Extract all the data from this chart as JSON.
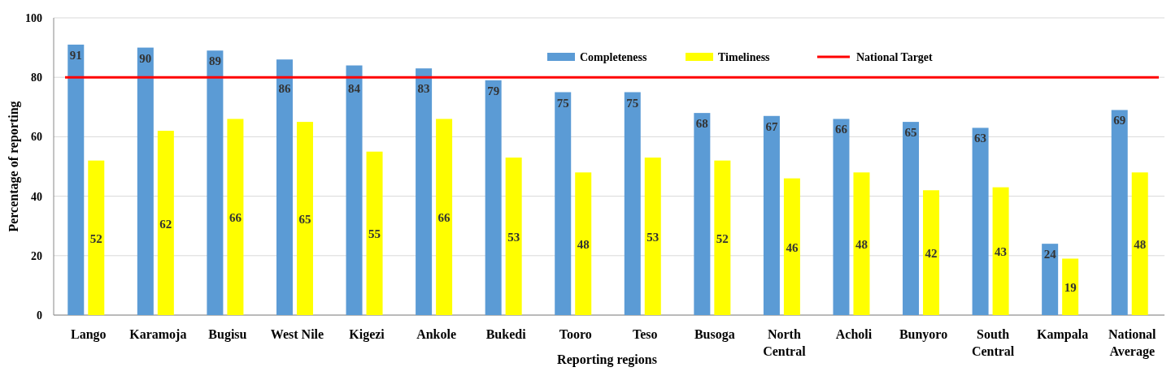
{
  "chart_data": {
    "type": "bar",
    "xlabel": "Reporting regions",
    "ylabel": "Percentage of reporting",
    "categories": [
      "Lango",
      "Karamoja",
      "Bugisu",
      "West Nile",
      "Kigezi",
      "Ankole",
      "Bukedi",
      "Tooro",
      "Teso",
      "Busoga",
      "North Central",
      "Acholi",
      "Bunyoro",
      "South Central",
      "Kampala",
      "National Average"
    ],
    "series": [
      {
        "name": "Completeness",
        "color": "#5b9bd5",
        "values": [
          91,
          90,
          89,
          86,
          84,
          83,
          79,
          75,
          75,
          68,
          67,
          66,
          65,
          63,
          24,
          69
        ]
      },
      {
        "name": "Timeliness",
        "color": "#ffff00",
        "values": [
          52,
          62,
          66,
          65,
          55,
          66,
          53,
          48,
          53,
          52,
          46,
          48,
          42,
          43,
          19,
          48
        ]
      }
    ],
    "ylim": [
      0,
      100
    ],
    "yticks": [
      0,
      20,
      40,
      60,
      80,
      100
    ],
    "grid": "y",
    "legend": "top",
    "data_labels": true,
    "ref_lines": [
      {
        "axis": "y",
        "value": 80,
        "label": "National Target",
        "color": "#ff0000"
      }
    ]
  }
}
